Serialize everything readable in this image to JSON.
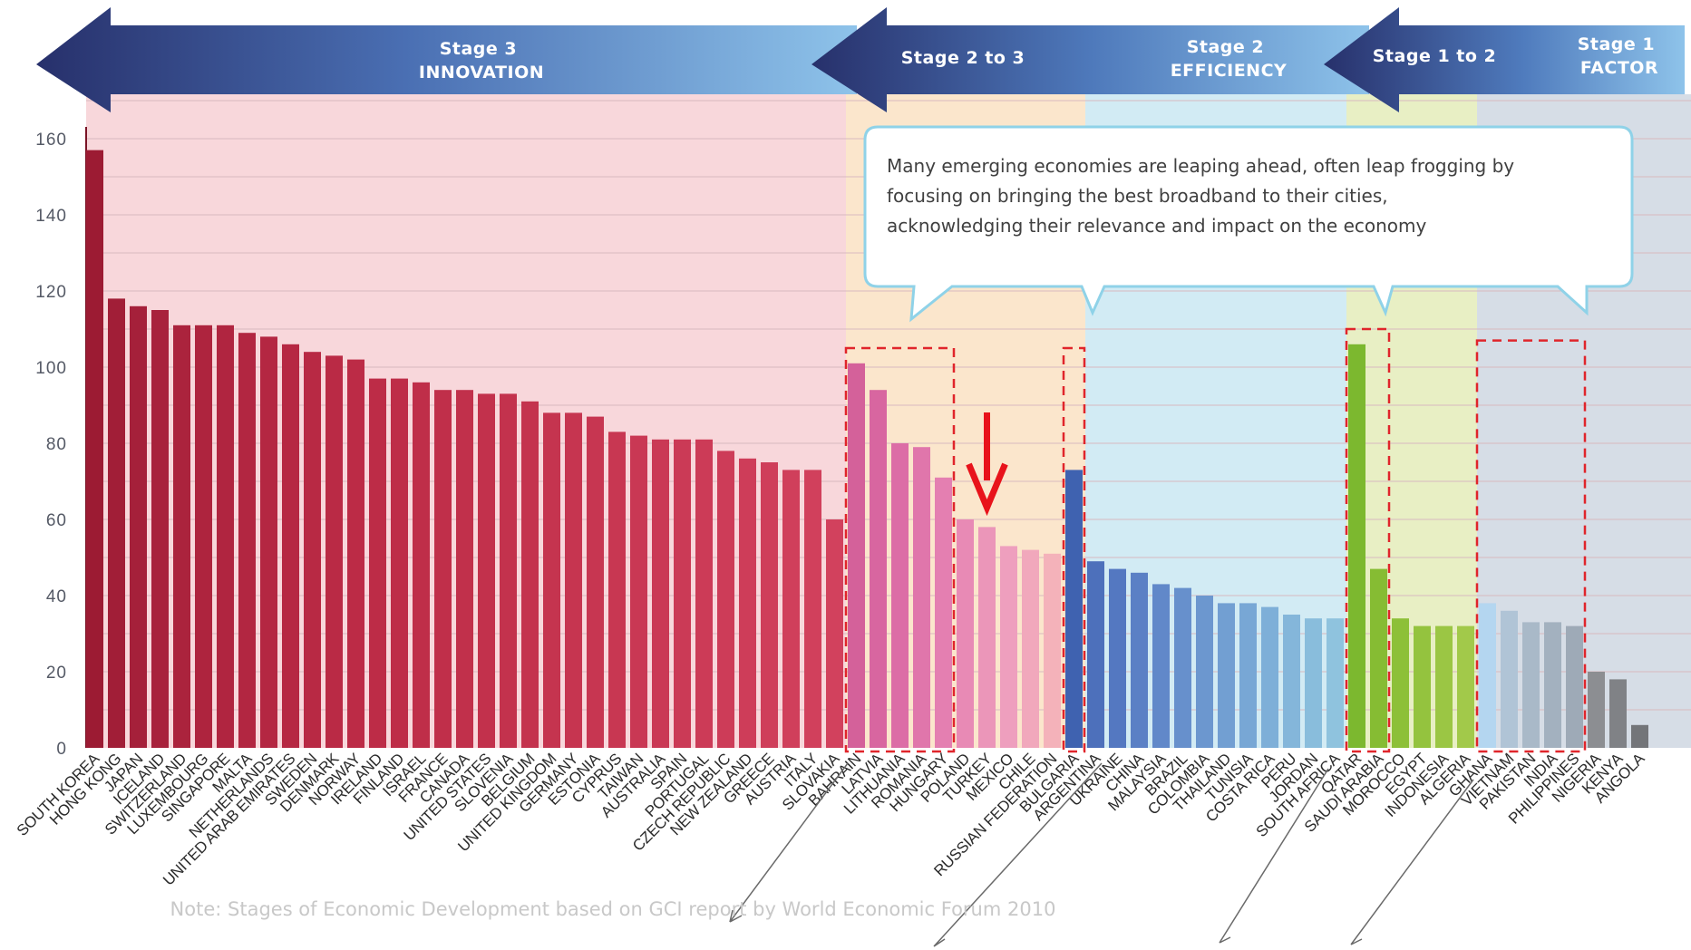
{
  "chart_data": {
    "type": "bar",
    "ylim": [
      0,
      170
    ],
    "yticks": [
      0,
      20,
      40,
      60,
      80,
      100,
      120,
      140,
      160
    ],
    "grid": true,
    "categories": [
      "SOUTH KOREA",
      "HONG KONG",
      "JAPAN",
      "ICELAND",
      "SWITZERLAND",
      "LUXEMBOURG",
      "SINGAPORE",
      "MALTA",
      "NETHERLANDS",
      "UNITED ARAB EMIRATES",
      "SWEDEN",
      "DENMARK",
      "NORWAY",
      "IRELAND",
      "FINLAND",
      "ISRAEL",
      "FRANCE",
      "CANADA",
      "UNITED STATES",
      "SLOVENIA",
      "BELGIUM",
      "UNITED KINGDOM",
      "GERMANY",
      "ESTONIA",
      "CYPRUS",
      "TAIWAN",
      "AUSTRALIA",
      "SPAIN",
      "PORTUGAL",
      "CZECH REPUBLIC",
      "NEW ZEALAND",
      "GREECE",
      "AUSTRIA",
      "ITALY",
      "SLOVAKIA",
      "BAHRAIN",
      "LATVIA",
      "LITHUANIA",
      "ROMANIA",
      "HUNGARY",
      "POLAND",
      "TURKEY",
      "MEXICO",
      "CHILE",
      "RUSSIAN FEDERATION",
      "BULGARIA",
      "ARGENTINA",
      "UKRAINE",
      "CHINA",
      "MALAYSIA",
      "BRAZIL",
      "COLOMBIA",
      "THAILAND",
      "TUNISIA",
      "COSTA RICA",
      "PERU",
      "JORDAN",
      "SOUTH AFRICA",
      "QATAR",
      "SAUDI ARABIA",
      "MOROCCO",
      "EGYPT",
      "INDONESIA",
      "ALGERIA",
      "GHANA",
      "VIETNAM",
      "PAKISTAN",
      "INDIA",
      "PHILIPPINES",
      "NIGERIA",
      "KENYA",
      "ANGOLA"
    ],
    "values": [
      157,
      118,
      116,
      115,
      111,
      111,
      111,
      109,
      108,
      106,
      104,
      103,
      102,
      97,
      97,
      96,
      94,
      94,
      93,
      93,
      91,
      88,
      88,
      87,
      83,
      82,
      81,
      81,
      81,
      78,
      76,
      75,
      73,
      73,
      60,
      101,
      94,
      80,
      79,
      71,
      60,
      58,
      53,
      52,
      51,
      73,
      49,
      47,
      46,
      43,
      42,
      40,
      38,
      38,
      37,
      35,
      34,
      34,
      106,
      47,
      34,
      32,
      32,
      32,
      38,
      36,
      33,
      33,
      32,
      20,
      18,
      6
    ],
    "colors": [
      "#9c1b33",
      "#a11e37",
      "#a5203a",
      "#a8223c",
      "#ab233d",
      "#ae243e",
      "#b02540",
      "#b22641",
      "#b42742",
      "#b62843",
      "#b82944",
      "#ba2a45",
      "#bc2b46",
      "#bd2c47",
      "#be2d48",
      "#bf2e49",
      "#c02f4a",
      "#c1304b",
      "#c2314c",
      "#c3324d",
      "#c4334e",
      "#c5344f",
      "#c63550",
      "#c73651",
      "#c83752",
      "#c93854",
      "#ca3955",
      "#cb3a56",
      "#cc3b57",
      "#cd3c58",
      "#ce3d59",
      "#cf3e5a",
      "#d03f5b",
      "#d1405c",
      "#d2415d",
      "#d4619a",
      "#d866a0",
      "#dc6da6",
      "#e076ab",
      "#e47fb1",
      "#e88ab5",
      "#eb96b9",
      "#ee9fbe",
      "#f1a8bc",
      "#f4b2ba",
      "#3f62b0",
      "#4d70bb",
      "#5478c1",
      "#5b80c5",
      "#6188c9",
      "#6790cc",
      "#6c97cf",
      "#729fd2",
      "#78a7d5",
      "#7eafd8",
      "#84b6da",
      "#89bddc",
      "#8fc3de",
      "#7cb82f",
      "#86bc33",
      "#8dc038",
      "#94c33e",
      "#9bc644",
      "#a2c94a",
      "#b4d6f0",
      "#b0c4d6",
      "#a9b9c8",
      "#a3b1bf",
      "#9eaab7",
      "#8c8e92",
      "#808286",
      "#737579"
    ],
    "stages": [
      {
        "from": 0,
        "to": 35,
        "color": "#f8d7db"
      },
      {
        "from": 35,
        "to": 46,
        "color": "#fbe6cc"
      },
      {
        "from": 46,
        "to": 58,
        "color": "#d2ebf4"
      },
      {
        "from": 58,
        "to": 64,
        "color": "#e8efc4"
      },
      {
        "from": 64,
        "to": 72,
        "color": "#d6dde6"
      }
    ],
    "dashed_boxes": [
      {
        "first": 35,
        "last": 39,
        "top": 105
      },
      {
        "first": 45,
        "last": 45,
        "top": 105
      },
      {
        "first": 58,
        "last": 59,
        "top": 110
      },
      {
        "first": 64,
        "last": 68,
        "top": 107
      }
    ],
    "marker_index": 41
  },
  "stage_arrows": {
    "stage3": [
      "Stage 3",
      "INNOVATION"
    ],
    "stage2to3": [
      "Stage 2 to 3"
    ],
    "stage2": [
      "Stage 2",
      "EFFICIENCY"
    ],
    "stage1to2": [
      "Stage 1 to 2"
    ],
    "stage1": [
      "Stage 1",
      "FACTOR"
    ]
  },
  "callout": {
    "lines": [
      "Many emerging economies are leaping ahead, often leap frogging by",
      "focusing on bringing the best broadband to their cities,",
      "acknowledging their relevance and impact on the economy"
    ]
  },
  "note": "Note: Stages of Economic Development based on GCI report by World Economic Forum 2010"
}
